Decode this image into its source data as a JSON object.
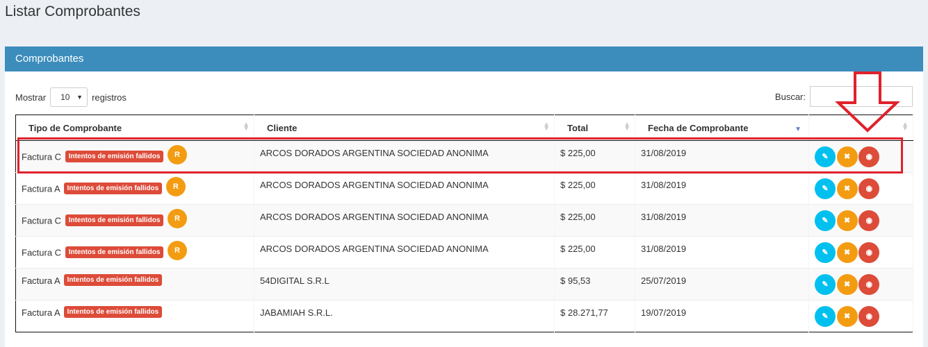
{
  "page": {
    "title": "Listar Comprobantes"
  },
  "box": {
    "title": "Comprobantes"
  },
  "controls": {
    "show_label": "Mostrar",
    "show_value": "10",
    "records_label": "registros",
    "search_label": "Buscar:",
    "search_value": ""
  },
  "table": {
    "headers": [
      "Tipo de Comprobante",
      "Cliente",
      "Total",
      "Fecha de Comprobante",
      ""
    ],
    "rows": [
      {
        "tipo": "Factura C",
        "badge": "Intentos de emisión fallidos",
        "r": "R",
        "cliente": "ARCOS DORADOS ARGENTINA SOCIEDAD ANONIMA",
        "total": "$ 225,00",
        "fecha": "31/08/2019"
      },
      {
        "tipo": "Factura A",
        "badge": "Intentos de emisión fallidos",
        "r": "R",
        "cliente": "ARCOS DORADOS ARGENTINA SOCIEDAD ANONIMA",
        "total": "$ 225,00",
        "fecha": "31/08/2019"
      },
      {
        "tipo": "Factura C",
        "badge": "Intentos de emisión fallidos",
        "r": "R",
        "cliente": "ARCOS DORADOS ARGENTINA SOCIEDAD ANONIMA",
        "total": "$ 225,00",
        "fecha": "31/08/2019"
      },
      {
        "tipo": "Factura C",
        "badge": "Intentos de emisión fallidos",
        "r": "R",
        "cliente": "ARCOS DORADOS ARGENTINA SOCIEDAD ANONIMA",
        "total": "$ 225,00",
        "fecha": "31/08/2019"
      },
      {
        "tipo": "Factura A",
        "badge": "Intentos de emisión fallidos",
        "r": "",
        "cliente": "54DIGITAL S.R.L",
        "total": "$ 95,53",
        "fecha": "25/07/2019"
      },
      {
        "tipo": "Factura A",
        "badge": "Intentos de emisión fallidos",
        "r": "",
        "cliente": "JABAMIAH S.R.L.",
        "total": "$ 28.271,77",
        "fecha": "19/07/2019"
      }
    ]
  },
  "icons": {
    "edit": "pencil-icon",
    "cancel": "x-icon",
    "view": "eye-icon"
  },
  "colors": {
    "primary": "#3c8dbc",
    "danger": "#dd4b39",
    "warning": "#f39c12",
    "info": "#00c0ef",
    "annotation": "#e0212b"
  }
}
